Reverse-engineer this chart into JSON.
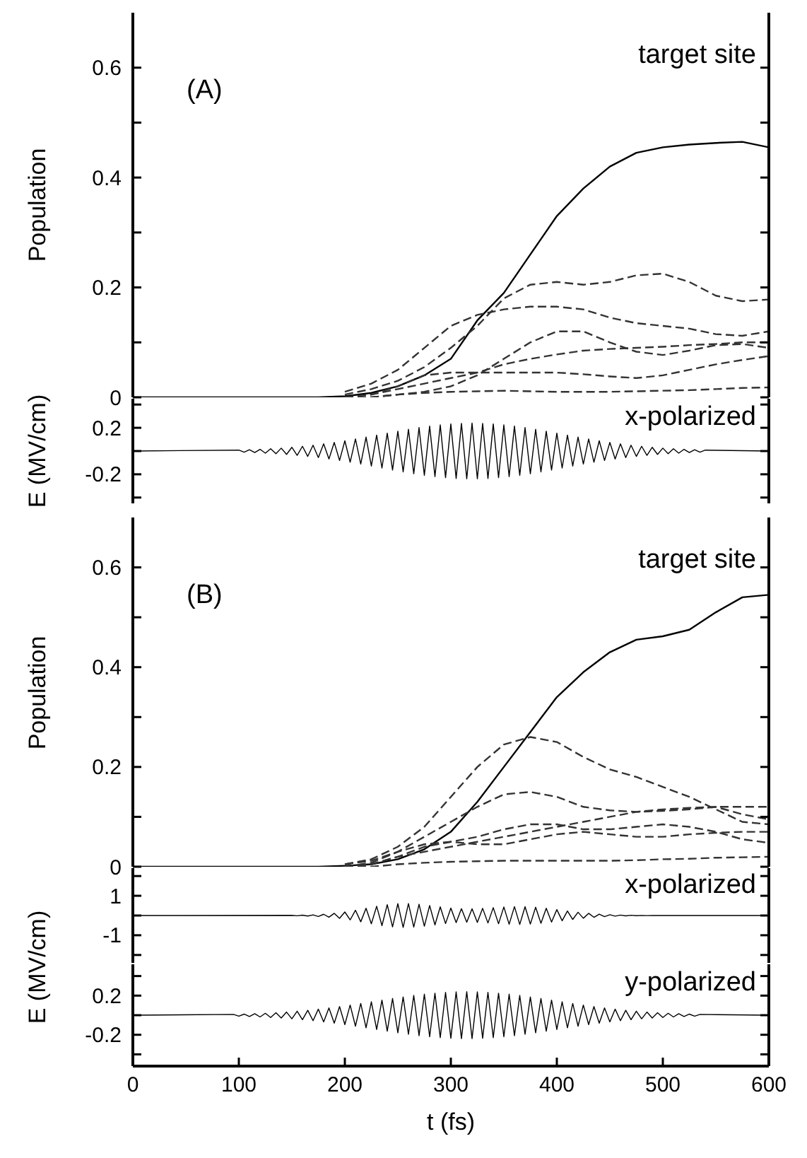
{
  "chart_data": [
    {
      "type": "line",
      "ylabel": "Population",
      "annotations": [
        "(A)",
        "target site"
      ],
      "x": [
        0,
        175,
        200,
        225,
        250,
        275,
        300,
        325,
        350,
        375,
        400,
        425,
        450,
        475,
        500,
        525,
        550,
        575,
        600
      ],
      "xlim": [
        0,
        600
      ],
      "xticks": [
        0,
        100,
        200,
        300,
        400,
        500,
        600
      ],
      "ylim": [
        0,
        0.7
      ],
      "yticks": [
        0,
        {
          "value": 0.1,
          "label": null
        },
        0.2,
        {
          "value": 0.3,
          "label": null
        },
        0.4,
        {
          "value": 0.5,
          "label": null
        },
        0.6
      ],
      "tick_labels": "y",
      "marker": "none",
      "series": [
        {
          "color": "#000000",
          "line_style": "solid",
          "values": [
            0,
            0,
            0.002,
            0.008,
            0.02,
            0.04,
            0.07,
            0.14,
            0.19,
            0.26,
            0.33,
            0.38,
            0.42,
            0.445,
            0.455,
            0.46,
            0.463,
            0.465,
            0.455
          ]
        },
        {
          "color": "#333333",
          "line_style": "dashed",
          "values": [
            null,
            null,
            0.005,
            0.015,
            0.03,
            0.055,
            0.09,
            0.13,
            0.18,
            0.205,
            0.21,
            0.205,
            0.21,
            0.222,
            0.225,
            0.21,
            0.185,
            0.175,
            0.178
          ]
        },
        {
          "color": "#333333",
          "line_style": "dashed",
          "values": [
            null,
            null,
            0.01,
            0.025,
            0.05,
            0.09,
            0.13,
            0.15,
            0.16,
            0.165,
            0.165,
            0.16,
            0.145,
            0.135,
            0.13,
            0.125,
            0.115,
            0.112,
            0.12
          ]
        },
        {
          "color": "#333333",
          "line_style": "dashed",
          "values": [
            null,
            null,
            0,
            0,
            0.005,
            0.01,
            0.02,
            0.04,
            0.07,
            0.1,
            0.12,
            0.12,
            0.1,
            0.083,
            0.077,
            0.085,
            0.095,
            0.097,
            0.09
          ]
        },
        {
          "color": "#333333",
          "line_style": "dashed",
          "values": [
            null,
            null,
            0,
            0.005,
            0.015,
            0.025,
            0.035,
            0.045,
            0.06,
            0.07,
            0.078,
            0.085,
            0.088,
            0.09,
            0.092,
            0.095,
            0.097,
            0.1,
            0.1
          ]
        },
        {
          "color": "#333333",
          "line_style": "dashed",
          "values": [
            null,
            null,
            0,
            0.005,
            0.02,
            0.04,
            0.045,
            0.045,
            0.045,
            0.045,
            0.045,
            0.042,
            0.038,
            0.035,
            0.04,
            0.05,
            0.06,
            0.068,
            0.075
          ]
        },
        {
          "color": "#333333",
          "line_style": "dashed",
          "values": [
            null,
            null,
            0,
            0,
            0.005,
            0.008,
            0.01,
            0.011,
            0.012,
            0.011,
            0.01,
            0.01,
            0.01,
            0.011,
            0.012,
            0.013,
            0.015,
            0.017,
            0.018
          ]
        }
      ]
    },
    {
      "type": "line",
      "ylabel": "E (MV/cm)",
      "annotations": [
        "x-polarized"
      ],
      "xlim": [
        0,
        600
      ],
      "xticks": [
        0,
        100,
        200,
        300,
        400,
        500,
        600
      ],
      "ylim": [
        -0.45,
        0.45
      ],
      "yticks": [
        {
          "value": -0.4,
          "label": null
        },
        -0.2,
        {
          "value": 0,
          "label": null
        },
        0.2,
        {
          "value": 0.4,
          "label": null
        }
      ],
      "tick_labels": "y",
      "marker": "none",
      "series": [
        {
          "color": "#000000",
          "line_style": "solid",
          "x": [
            0,
            100,
            105,
            110,
            115,
            120,
            125,
            130,
            135,
            140,
            145,
            150,
            155,
            160,
            165,
            170,
            175,
            180,
            185,
            190,
            195,
            200,
            205,
            210,
            215,
            220,
            225,
            230,
            235,
            240,
            245,
            250,
            255,
            260,
            265,
            270,
            275,
            280,
            285,
            290,
            295,
            300,
            305,
            310,
            315,
            320,
            325,
            330,
            335,
            340,
            345,
            350,
            355,
            360,
            365,
            370,
            375,
            380,
            385,
            390,
            395,
            400,
            405,
            410,
            415,
            420,
            425,
            430,
            435,
            440,
            445,
            450,
            455,
            460,
            465,
            470,
            475,
            480,
            485,
            490,
            495,
            500,
            505,
            510,
            515,
            520,
            525,
            530,
            535,
            540,
            600
          ],
          "values": [
            0,
            0.008,
            -0.01,
            0.011,
            -0.013,
            0.015,
            -0.018,
            0.02,
            -0.023,
            0.025,
            -0.029,
            0.032,
            -0.037,
            0.041,
            -0.046,
            0.05,
            -0.056,
            0.062,
            -0.068,
            0.074,
            -0.081,
            0.088,
            -0.096,
            0.104,
            -0.112,
            0.12,
            -0.129,
            0.137,
            -0.146,
            0.154,
            -0.163,
            0.171,
            -0.179,
            0.187,
            -0.195,
            0.202,
            -0.209,
            0.215,
            -0.22,
            0.225,
            -0.229,
            0.233,
            -0.236,
            0.238,
            -0.239,
            0.24,
            -0.239,
            0.238,
            -0.236,
            0.233,
            -0.229,
            0.225,
            -0.22,
            0.215,
            -0.209,
            0.202,
            -0.195,
            0.187,
            -0.179,
            0.171,
            -0.163,
            0.154,
            -0.146,
            0.137,
            -0.129,
            0.12,
            -0.112,
            0.104,
            -0.096,
            0.088,
            -0.081,
            0.074,
            -0.068,
            0.062,
            -0.056,
            0.05,
            -0.046,
            0.041,
            -0.037,
            0.032,
            -0.029,
            0.025,
            -0.023,
            0.02,
            -0.018,
            0.015,
            -0.013,
            0.011,
            -0.01,
            0.008,
            0
          ]
        }
      ]
    },
    {
      "type": "line",
      "ylabel": "Population",
      "annotations": [
        "(B)",
        "target site"
      ],
      "x": [
        0,
        175,
        200,
        225,
        250,
        275,
        300,
        325,
        350,
        375,
        400,
        425,
        450,
        475,
        500,
        525,
        550,
        575,
        600
      ],
      "xlim": [
        0,
        600
      ],
      "xticks": [
        0,
        100,
        200,
        300,
        400,
        500,
        600
      ],
      "ylim": [
        0,
        0.7
      ],
      "yticks": [
        0,
        {
          "value": 0.1,
          "label": null
        },
        0.2,
        {
          "value": 0.3,
          "label": null
        },
        0.4,
        {
          "value": 0.5,
          "label": null
        },
        0.6
      ],
      "tick_labels": "y",
      "marker": "none",
      "series": [
        {
          "color": "#000000",
          "line_style": "solid",
          "values": [
            0,
            0,
            0.002,
            0.005,
            0.015,
            0.035,
            0.07,
            0.13,
            0.2,
            0.27,
            0.34,
            0.39,
            0.43,
            0.455,
            0.462,
            0.475,
            0.51,
            0.54,
            0.545
          ]
        },
        {
          "color": "#333333",
          "line_style": "dashed",
          "values": [
            null,
            null,
            0.005,
            0.015,
            0.04,
            0.08,
            0.14,
            0.2,
            0.245,
            0.26,
            0.25,
            0.22,
            0.195,
            0.18,
            0.16,
            0.14,
            0.115,
            0.09,
            0.085
          ]
        },
        {
          "color": "#333333",
          "line_style": "dashed",
          "values": [
            null,
            null,
            0.005,
            0.012,
            0.03,
            0.06,
            0.09,
            0.12,
            0.145,
            0.15,
            0.14,
            0.12,
            0.113,
            0.11,
            0.112,
            0.115,
            0.12,
            0.12,
            0.12
          ]
        },
        {
          "color": "#333333",
          "line_style": "dashed",
          "values": [
            null,
            null,
            0,
            0.005,
            0.02,
            0.03,
            0.04,
            0.05,
            0.06,
            0.07,
            0.08,
            0.09,
            0.1,
            0.11,
            0.115,
            0.118,
            0.12,
            0.105,
            0.095
          ]
        },
        {
          "color": "#333333",
          "line_style": "dashed",
          "values": [
            null,
            null,
            0,
            0.005,
            0.02,
            0.04,
            0.05,
            0.06,
            0.075,
            0.085,
            0.085,
            0.075,
            0.075,
            0.08,
            0.085,
            0.08,
            0.07,
            0.055,
            0.048
          ]
        },
        {
          "color": "#333333",
          "line_style": "dashed",
          "values": [
            null,
            null,
            0,
            0.008,
            0.03,
            0.045,
            0.05,
            0.045,
            0.045,
            0.055,
            0.065,
            0.07,
            0.065,
            0.06,
            0.06,
            0.065,
            0.068,
            0.07,
            0.07
          ]
        },
        {
          "color": "#333333",
          "line_style": "dashed",
          "values": [
            null,
            null,
            0,
            0,
            0.005,
            0.008,
            0.01,
            0.011,
            0.012,
            0.012,
            0.012,
            0.012,
            0.012,
            0.013,
            0.015,
            0.016,
            0.018,
            0.019,
            0.02
          ]
        }
      ]
    },
    {
      "type": "line",
      "ylabel": "E (MV/cm)",
      "annotations": [
        "x-polarized"
      ],
      "xlim": [
        0,
        600
      ],
      "xticks": [
        0,
        100,
        200,
        300,
        400,
        500,
        600
      ],
      "ylim": [
        -2.4,
        2.4
      ],
      "yticks": [
        {
          "value": -2,
          "label": null
        },
        -1,
        {
          "value": 0,
          "label": null
        },
        1,
        {
          "value": 2,
          "label": null
        }
      ],
      "tick_labels": "y",
      "marker": "none",
      "series": [
        {
          "color": "#000000",
          "line_style": "solid",
          "x": [
            0,
            150,
            155,
            160,
            165,
            170,
            175,
            180,
            185,
            190,
            195,
            200,
            205,
            210,
            215,
            220,
            225,
            230,
            235,
            240,
            245,
            250,
            255,
            260,
            265,
            270,
            275,
            280,
            285,
            290,
            295,
            300,
            305,
            310,
            315,
            320,
            325,
            330,
            335,
            340,
            345,
            350,
            355,
            360,
            365,
            370,
            375,
            380,
            385,
            390,
            395,
            400,
            405,
            410,
            415,
            420,
            425,
            430,
            435,
            440,
            445,
            450,
            455,
            460,
            465,
            470,
            475,
            480,
            485,
            490,
            600
          ],
          "values": [
            0,
            0.007,
            -0.012,
            0.016,
            -0.025,
            0.033,
            -0.048,
            0.063,
            -0.087,
            0.111,
            -0.145,
            0.179,
            -0.223,
            0.267,
            -0.318,
            0.368,
            -0.418,
            0.468,
            -0.51,
            0.551,
            -0.576,
            0.6,
            -0.603,
            0.606,
            -0.589,
            0.571,
            -0.54,
            0.508,
            -0.473,
            0.438,
            -0.408,
            0.378,
            -0.362,
            0.345,
            -0.343,
            0.341,
            -0.352,
            0.363,
            -0.381,
            0.399,
            -0.417,
            0.434,
            -0.444,
            0.453,
            -0.451,
            0.449,
            -0.434,
            0.418,
            -0.392,
            0.366,
            -0.333,
            0.3,
            -0.265,
            0.23,
            -0.198,
            0.166,
            -0.139,
            0.111,
            -0.091,
            0.07,
            -0.056,
            0.041,
            -0.032,
            0.023,
            -0.018,
            0.012,
            -0.009,
            0.006,
            -0.005,
            0.003,
            0
          ]
        }
      ]
    },
    {
      "type": "line",
      "xlabel": "t (fs)",
      "annotations": [
        "y-polarized"
      ],
      "xlim": [
        0,
        600
      ],
      "xticks": [
        0,
        100,
        200,
        300,
        400,
        500,
        600
      ],
      "ylim": [
        -0.52,
        0.52
      ],
      "yticks": [
        {
          "value": -0.4,
          "label": null
        },
        -0.2,
        {
          "value": 0,
          "label": null
        },
        0.2,
        {
          "value": 0.4,
          "label": null
        }
      ],
      "marker": "none",
      "series": [
        {
          "color": "#000000",
          "line_style": "solid",
          "x": [
            0,
            95,
            100,
            105,
            110,
            115,
            120,
            125,
            130,
            135,
            140,
            145,
            150,
            155,
            160,
            165,
            170,
            175,
            180,
            185,
            190,
            195,
            200,
            205,
            210,
            215,
            220,
            225,
            230,
            235,
            240,
            245,
            250,
            255,
            260,
            265,
            270,
            275,
            280,
            285,
            290,
            295,
            300,
            305,
            310,
            315,
            320,
            325,
            330,
            335,
            340,
            345,
            350,
            355,
            360,
            365,
            370,
            375,
            380,
            385,
            390,
            395,
            400,
            405,
            410,
            415,
            420,
            425,
            430,
            435,
            440,
            445,
            450,
            455,
            460,
            465,
            470,
            475,
            480,
            485,
            490,
            495,
            500,
            505,
            510,
            515,
            520,
            525,
            530,
            535,
            600
          ],
          "values": [
            0,
            0.008,
            -0.01,
            0.011,
            -0.013,
            0.015,
            -0.018,
            0.02,
            -0.023,
            0.025,
            -0.029,
            0.032,
            -0.037,
            0.041,
            -0.046,
            0.05,
            -0.056,
            0.062,
            -0.068,
            0.074,
            -0.081,
            0.088,
            -0.096,
            0.104,
            -0.112,
            0.12,
            -0.129,
            0.137,
            -0.146,
            0.154,
            -0.163,
            0.171,
            -0.179,
            0.187,
            -0.195,
            0.202,
            -0.209,
            0.215,
            -0.22,
            0.225,
            -0.229,
            0.233,
            -0.236,
            0.238,
            -0.239,
            0.24,
            -0.239,
            0.238,
            -0.236,
            0.233,
            -0.229,
            0.225,
            -0.22,
            0.215,
            -0.209,
            0.202,
            -0.195,
            0.187,
            -0.179,
            0.171,
            -0.163,
            0.154,
            -0.146,
            0.137,
            -0.129,
            0.12,
            -0.112,
            0.104,
            -0.096,
            0.088,
            -0.081,
            0.074,
            -0.068,
            0.062,
            -0.056,
            0.05,
            -0.046,
            0.041,
            -0.037,
            0.032,
            -0.029,
            0.025,
            -0.023,
            0.02,
            -0.018,
            0.015,
            -0.013,
            0.011,
            -0.01,
            0.008,
            0
          ]
        }
      ]
    }
  ]
}
